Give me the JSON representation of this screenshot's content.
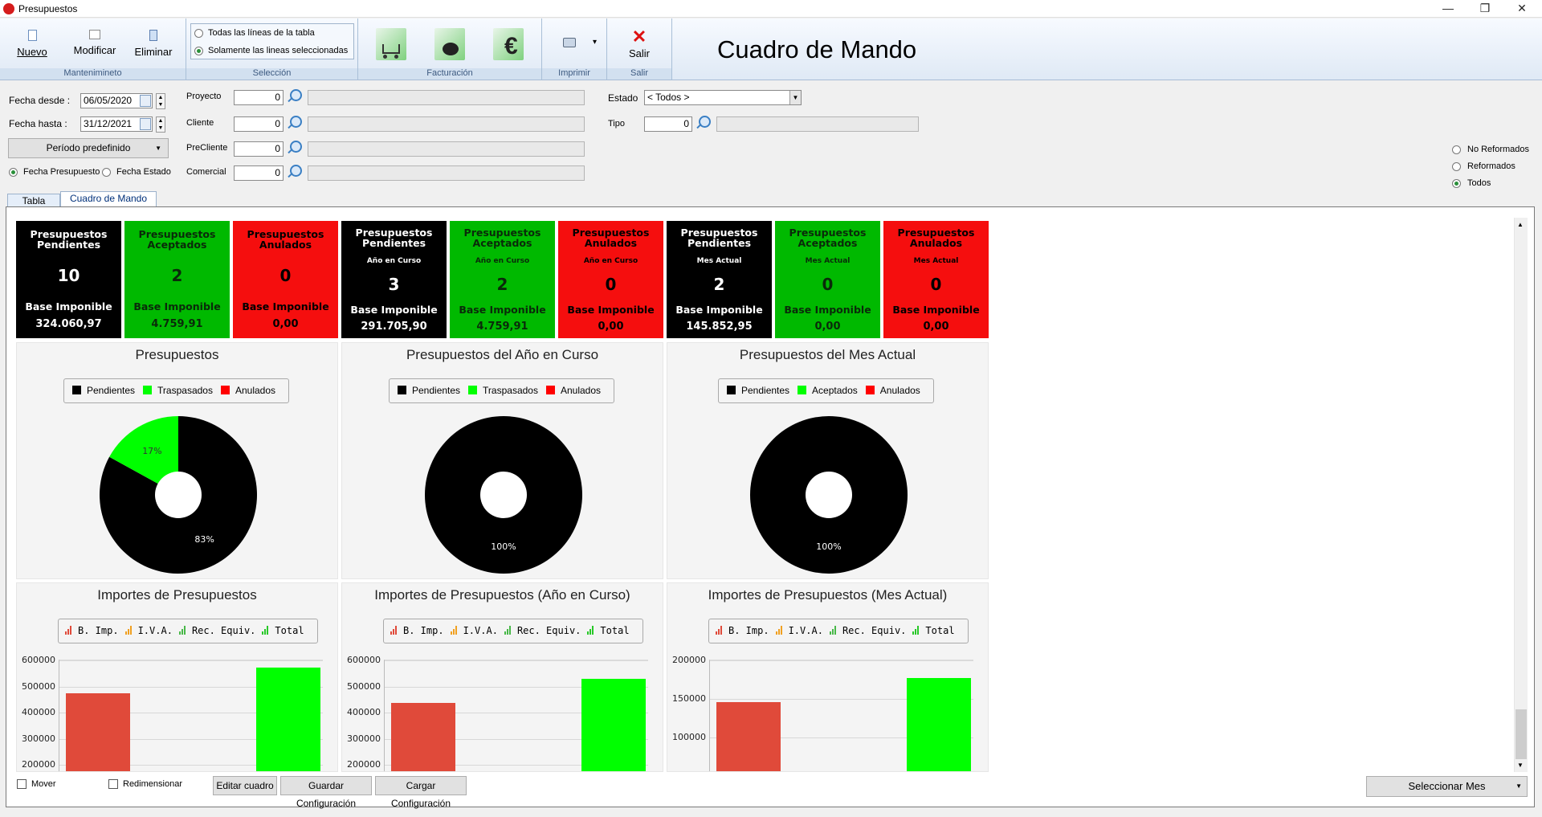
{
  "window": {
    "title": "Presupuestos",
    "min": "—",
    "max": "❐",
    "close": "✕"
  },
  "ribbon": {
    "groups": {
      "mant": "Mantenimineto",
      "sel": "Selección",
      "fact": "Facturación",
      "imp": "Imprimir",
      "salir": "Salir"
    },
    "nuevo": "Nuevo",
    "modificar": "Modificar",
    "eliminar": "Eliminar",
    "radio_todas": "Todas las líneas de la tabla",
    "radio_sel": "Solamente las lineas seleccionadas",
    "salir": "Salir",
    "print_arrow": "▾"
  },
  "page_title": "Cuadro de Mando",
  "filters": {
    "fecha_desde_label": "Fecha desde :",
    "fecha_desde": "06/05/2020",
    "fecha_hasta_label": "Fecha hasta :",
    "fecha_hasta": "31/12/2021",
    "periodo": "Período predefinido",
    "fecha_presupuesto": "Fecha Presupuesto",
    "fecha_estado": "Fecha Estado",
    "proyecto": "Proyecto",
    "cliente": "Cliente",
    "precliente": "PreCliente",
    "comercial": "Comercial",
    "zero": "0",
    "estado_label": "Estado",
    "estado": "< Todos >",
    "tipo_label": "Tipo",
    "no_reformados": "No Reformados",
    "reformados": "Reformados",
    "todos": "Todos"
  },
  "tabs": {
    "tabla": "Tabla",
    "cuadro": "Cuadro de Mando"
  },
  "cards": [
    {
      "t1": "Presupuestos",
      "t2": "Pendientes",
      "sub": "",
      "value": "10",
      "base_label": "Base Imponible",
      "amount": "324.060,97",
      "color": "black"
    },
    {
      "t1": "Presupuestos",
      "t2": "Aceptados",
      "sub": "",
      "value": "2",
      "base_label": "Base Imponible",
      "amount": "4.759,91",
      "color": "green"
    },
    {
      "t1": "Presupuestos",
      "t2": "Anulados",
      "sub": "",
      "value": "0",
      "base_label": "Base Imponible",
      "amount": "0,00",
      "color": "red"
    },
    {
      "t1": "Presupuestos",
      "t2": "Pendientes",
      "sub": "Año en Curso",
      "value": "3",
      "base_label": "Base Imponible",
      "amount": "291.705,90",
      "color": "black"
    },
    {
      "t1": "Presupuestos",
      "t2": "Aceptados",
      "sub": "Año en Curso",
      "value": "2",
      "base_label": "Base Imponible",
      "amount": "4.759,91",
      "color": "green"
    },
    {
      "t1": "Presupuestos",
      "t2": "Anulados",
      "sub": "Año en Curso",
      "value": "0",
      "base_label": "Base Imponible",
      "amount": "0,00",
      "color": "red"
    },
    {
      "t1": "Presupuestos",
      "t2": "Pendientes",
      "sub": "Mes Actual",
      "value": "2",
      "base_label": "Base Imponible",
      "amount": "145.852,95",
      "color": "black"
    },
    {
      "t1": "Presupuestos",
      "t2": "Aceptados",
      "sub": "Mes Actual",
      "value": "0",
      "base_label": "Base Imponible",
      "amount": "0,00",
      "color": "green"
    },
    {
      "t1": "Presupuestos",
      "t2": "Anulados",
      "sub": "Mes Actual",
      "value": "0",
      "base_label": "Base Imponible",
      "amount": "0,00",
      "color": "red"
    }
  ],
  "colors": {
    "black": "#000000",
    "green": "#00ff00",
    "red": "#ff0000",
    "bar_bimp": "#e04a3a",
    "bar_total": "#00ff00"
  },
  "chart_data": [
    {
      "type": "pie",
      "title": "Presupuestos",
      "legend": [
        "Pendientes",
        "Traspasados",
        "Anulados"
      ],
      "values": [
        83,
        17,
        0
      ],
      "labels": [
        "83%",
        "17%",
        ""
      ]
    },
    {
      "type": "pie",
      "title": "Presupuestos del Año en Curso",
      "legend": [
        "Pendientes",
        "Traspasados",
        "Anulados"
      ],
      "values": [
        100,
        0,
        0
      ],
      "labels": [
        "100%",
        "",
        ""
      ]
    },
    {
      "type": "pie",
      "title": "Presupuestos del Mes Actual",
      "legend": [
        "Pendientes",
        "Aceptados",
        "Anulados"
      ],
      "values": [
        100,
        0,
        0
      ],
      "labels": [
        "100%",
        "",
        ""
      ]
    },
    {
      "type": "bar",
      "title": "Importes de Presupuestos",
      "legend": [
        "B. Imp.",
        "I.V.A.",
        "Rec. Equiv.",
        "Total"
      ],
      "series": [
        {
          "name": "B. Imp.",
          "values": [
            473000
          ]
        },
        {
          "name": "Total",
          "values": [
            573000
          ]
        }
      ],
      "yticks": [
        "600000",
        "500000",
        "400000",
        "300000",
        "200000"
      ],
      "ylim": [
        200000,
        600000
      ]
    },
    {
      "type": "bar",
      "title": "Importes de Presupuestos (Año en Curso)",
      "legend": [
        "B. Imp.",
        "I.V.A.",
        "Rec. Equiv.",
        "Total"
      ],
      "series": [
        {
          "name": "B. Imp.",
          "values": [
            437000
          ]
        },
        {
          "name": "Total",
          "values": [
            529000
          ]
        }
      ],
      "yticks": [
        "600000",
        "500000",
        "400000",
        "300000",
        "200000"
      ],
      "ylim": [
        200000,
        600000
      ]
    },
    {
      "type": "bar",
      "title": "Importes de Presupuestos (Mes Actual)",
      "legend": [
        "B. Imp.",
        "I.V.A.",
        "Rec. Equiv.",
        "Total"
      ],
      "series": [
        {
          "name": "B. Imp.",
          "values": [
            146000
          ]
        },
        {
          "name": "Total",
          "values": [
            177000
          ]
        }
      ],
      "yticks": [
        "200000",
        "150000",
        "100000"
      ],
      "ylim": [
        100000,
        200000
      ]
    }
  ],
  "bottom": {
    "mover": "Mover",
    "redimensionar": "Redimensionar",
    "editar": "Editar cuadro",
    "guardar": "Guardar Configuración",
    "cargar": "Cargar Configuración",
    "mes": "Seleccionar Mes"
  }
}
